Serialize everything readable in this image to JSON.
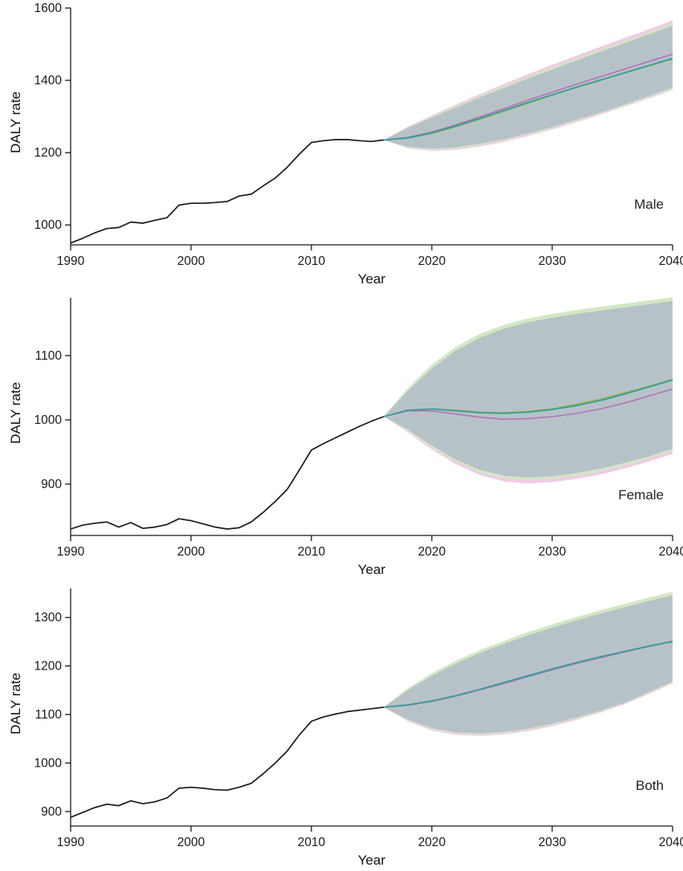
{
  "figure_title": "",
  "accent_colors": {
    "historical": "#1a1a1a",
    "series_magenta": "#b273b8",
    "series_teal": "#2b9f9f",
    "series_green": "#8fae3e",
    "band_magenta": "#f0cbe4",
    "band_green": "#d2e8c2",
    "band_gray": "#b7c2c8",
    "axis": "#1a1a1a"
  },
  "chart_data": [
    {
      "type": "line",
      "panel_label": "Male",
      "xlabel": "Year",
      "ylabel": "DALY rate",
      "xlim": [
        1990,
        2040
      ],
      "ylim": [
        945,
        1600
      ],
      "xticks": [
        1990,
        2000,
        2010,
        2020,
        2030,
        2040
      ],
      "yticks": [
        1000,
        1200,
        1400,
        1600
      ],
      "grid": false,
      "legend": "none",
      "historical": {
        "name": "observed",
        "x": [
          1990,
          1991,
          1992,
          1993,
          1994,
          1995,
          1996,
          1997,
          1998,
          1999,
          2000,
          2001,
          2002,
          2003,
          2004,
          2005,
          2006,
          2007,
          2008,
          2009,
          2010,
          2011,
          2012,
          2013,
          2014,
          2015,
          2016
        ],
        "y": [
          950,
          963,
          978,
          990,
          993,
          1008,
          1005,
          1013,
          1020,
          1055,
          1060,
          1060,
          1062,
          1065,
          1080,
          1085,
          1108,
          1130,
          1160,
          1196,
          1228,
          1233,
          1236,
          1236,
          1233,
          1231,
          1235
        ]
      },
      "forecast": {
        "x": [
          2016,
          2018,
          2020,
          2022,
          2024,
          2026,
          2028,
          2030,
          2032,
          2034,
          2036,
          2038,
          2040
        ],
        "series": [
          {
            "name": "magenta",
            "color": "#b273b8",
            "values": [
              1235,
              1242,
              1257,
              1277,
              1299,
              1322,
              1345,
              1367,
              1389,
              1410,
              1431,
              1452,
              1472
            ]
          },
          {
            "name": "green",
            "color": "#8fae3e",
            "values": [
              1235,
              1240,
              1253,
              1272,
              1293,
              1315,
              1337,
              1359,
              1380,
              1400,
              1420,
              1440,
              1459
            ]
          },
          {
            "name": "teal",
            "color": "#2b9f9f",
            "values": [
              1235,
              1241,
              1255,
              1274,
              1295,
              1317,
              1339,
              1360,
              1381,
              1401,
              1421,
              1441,
              1461
            ]
          }
        ],
        "bands": [
          {
            "name": "magenta-band",
            "color": "#f0cbe4",
            "lower": [
              1235,
              1212,
              1205,
              1208,
              1217,
              1230,
              1246,
              1264,
              1284,
              1305,
              1327,
              1350,
              1373
            ],
            "upper": [
              1235,
              1272,
              1303,
              1333,
              1362,
              1390,
              1417,
              1443,
              1468,
              1493,
              1517,
              1541,
              1566
            ]
          },
          {
            "name": "green-band",
            "color": "#d2e8c2",
            "lower": [
              1235,
              1214,
              1208,
              1212,
              1221,
              1234,
              1250,
              1268,
              1288,
              1308,
              1330,
              1353,
              1376
            ],
            "upper": [
              1235,
              1270,
              1300,
              1329,
              1357,
              1384,
              1410,
              1436,
              1461,
              1485,
              1509,
              1533,
              1558
            ]
          },
          {
            "name": "gray-band",
            "color": "#b7c2c8",
            "lower": [
              1235,
              1216,
              1211,
              1215,
              1224,
              1237,
              1253,
              1271,
              1291,
              1311,
              1333,
              1356,
              1380
            ],
            "upper": [
              1235,
              1268,
              1297,
              1325,
              1353,
              1379,
              1405,
              1430,
              1455,
              1479,
              1503,
              1527,
              1551
            ]
          }
        ]
      }
    },
    {
      "type": "line",
      "panel_label": "Female",
      "xlabel": "Year",
      "ylabel": "DALY rate",
      "xlim": [
        1990,
        2040
      ],
      "ylim": [
        820,
        1190
      ],
      "xticks": [
        1990,
        2000,
        2010,
        2020,
        2030,
        2040
      ],
      "yticks": [
        900,
        1000,
        1100
      ],
      "grid": false,
      "legend": "none",
      "historical": {
        "name": "observed",
        "x": [
          1990,
          1991,
          1992,
          1993,
          1994,
          1995,
          1996,
          1997,
          1998,
          1999,
          2000,
          2001,
          2002,
          2003,
          2004,
          2005,
          2006,
          2007,
          2008,
          2009,
          2010,
          2011,
          2012,
          2013,
          2014,
          2015,
          2016
        ],
        "y": [
          830,
          836,
          839,
          841,
          833,
          840,
          831,
          833,
          837,
          846,
          843,
          838,
          833,
          830,
          832,
          841,
          856,
          873,
          892,
          922,
          953,
          963,
          972,
          981,
          990,
          998,
          1005
        ]
      },
      "forecast": {
        "x": [
          2016,
          2018,
          2020,
          2022,
          2024,
          2026,
          2028,
          2030,
          2032,
          2034,
          2036,
          2038,
          2040
        ],
        "series": [
          {
            "name": "magenta",
            "color": "#b273b8",
            "values": [
              1005,
              1014,
              1014,
              1009,
              1004,
              1001,
              1002,
              1005,
              1010,
              1017,
              1026,
              1037,
              1048
            ]
          },
          {
            "name": "green",
            "color": "#8fae3e",
            "values": [
              1005,
              1015,
              1017,
              1015,
              1012,
              1011,
              1013,
              1017,
              1024,
              1032,
              1042,
              1052,
              1063
            ]
          },
          {
            "name": "teal",
            "color": "#2b9f9f",
            "values": [
              1005,
              1015,
              1017,
              1014,
              1011,
              1010,
              1012,
              1016,
              1022,
              1030,
              1040,
              1051,
              1062
            ]
          }
        ],
        "bands": [
          {
            "name": "magenta-band",
            "color": "#f0cbe4",
            "lower": [
              1005,
              981,
              954,
              931,
              914,
              904,
              901,
              903,
              908,
              915,
              924,
              935,
              947
            ],
            "upper": [
              1005,
              1046,
              1082,
              1109,
              1129,
              1143,
              1153,
              1160,
              1166,
              1171,
              1176,
              1181,
              1186
            ]
          },
          {
            "name": "green-band",
            "color": "#d2e8c2",
            "lower": [
              1005,
              983,
              957,
              935,
              918,
              909,
              906,
              908,
              913,
              920,
              929,
              940,
              951
            ],
            "upper": [
              1005,
              1049,
              1086,
              1114,
              1134,
              1148,
              1158,
              1165,
              1171,
              1176,
              1181,
              1186,
              1191
            ]
          },
          {
            "name": "gray-band",
            "color": "#b7c2c8",
            "lower": [
              1005,
              985,
              960,
              938,
              922,
              913,
              910,
              912,
              917,
              924,
              933,
              943,
              955
            ],
            "upper": [
              1005,
              1045,
              1080,
              1108,
              1128,
              1142,
              1152,
              1159,
              1165,
              1170,
              1175,
              1180,
              1185
            ]
          }
        ]
      }
    },
    {
      "type": "line",
      "panel_label": "Both",
      "xlabel": "Year",
      "ylabel": "DALY rate",
      "xlim": [
        1990,
        2040
      ],
      "ylim": [
        870,
        1360
      ],
      "xticks": [
        1990,
        2000,
        2010,
        2020,
        2030,
        2040
      ],
      "yticks": [
        900,
        1000,
        1100,
        1200,
        1300
      ],
      "grid": false,
      "legend": "none",
      "historical": {
        "name": "observed",
        "x": [
          1990,
          1991,
          1992,
          1993,
          1994,
          1995,
          1996,
          1997,
          1998,
          1999,
          2000,
          2001,
          2002,
          2003,
          2004,
          2005,
          2006,
          2007,
          2008,
          2009,
          2010,
          2011,
          2012,
          2013,
          2014,
          2015,
          2016
        ],
        "y": [
          888,
          898,
          908,
          915,
          912,
          922,
          916,
          920,
          928,
          948,
          950,
          948,
          945,
          944,
          950,
          958,
          978,
          1000,
          1025,
          1058,
          1086,
          1095,
          1101,
          1106,
          1109,
          1112,
          1115
        ]
      },
      "forecast": {
        "x": [
          2016,
          2018,
          2020,
          2022,
          2024,
          2026,
          2028,
          2030,
          2032,
          2034,
          2036,
          2038,
          2040
        ],
        "series": [
          {
            "name": "magenta",
            "color": "#b273b8",
            "values": [
              1115,
              1119,
              1127,
              1138,
              1151,
              1164,
              1178,
              1192,
              1205,
              1217,
              1229,
              1240,
              1250
            ]
          },
          {
            "name": "green",
            "color": "#8fae3e",
            "values": [
              1115,
              1120,
              1128,
              1139,
              1152,
              1166,
              1180,
              1194,
              1207,
              1219,
              1230,
              1241,
              1250
            ]
          },
          {
            "name": "teal",
            "color": "#2b9f9f",
            "values": [
              1115,
              1120,
              1128,
              1139,
              1152,
              1166,
              1180,
              1194,
              1207,
              1219,
              1230,
              1241,
              1251
            ]
          }
        ],
        "bands": [
          {
            "name": "magenta-band",
            "color": "#f0cbe4",
            "lower": [
              1115,
              1086,
              1067,
              1058,
              1056,
              1059,
              1066,
              1076,
              1089,
              1104,
              1121,
              1142,
              1164
            ],
            "upper": [
              1115,
              1152,
              1183,
              1209,
              1231,
              1250,
              1267,
              1283,
              1298,
              1312,
              1325,
              1338,
              1350
            ]
          },
          {
            "name": "green-band",
            "color": "#d2e8c2",
            "lower": [
              1115,
              1088,
              1070,
              1061,
              1059,
              1062,
              1069,
              1079,
              1092,
              1106,
              1123,
              1144,
              1166
            ],
            "upper": [
              1115,
              1154,
              1185,
              1211,
              1233,
              1252,
              1270,
              1286,
              1301,
              1315,
              1328,
              1341,
              1353
            ]
          },
          {
            "name": "gray-band",
            "color": "#b7c2c8",
            "lower": [
              1115,
              1090,
              1072,
              1063,
              1061,
              1064,
              1071,
              1081,
              1094,
              1108,
              1124,
              1146,
              1168
            ],
            "upper": [
              1115,
              1150,
              1180,
              1205,
              1227,
              1246,
              1263,
              1279,
              1294,
              1308,
              1321,
              1334,
              1346
            ]
          }
        ]
      }
    }
  ]
}
